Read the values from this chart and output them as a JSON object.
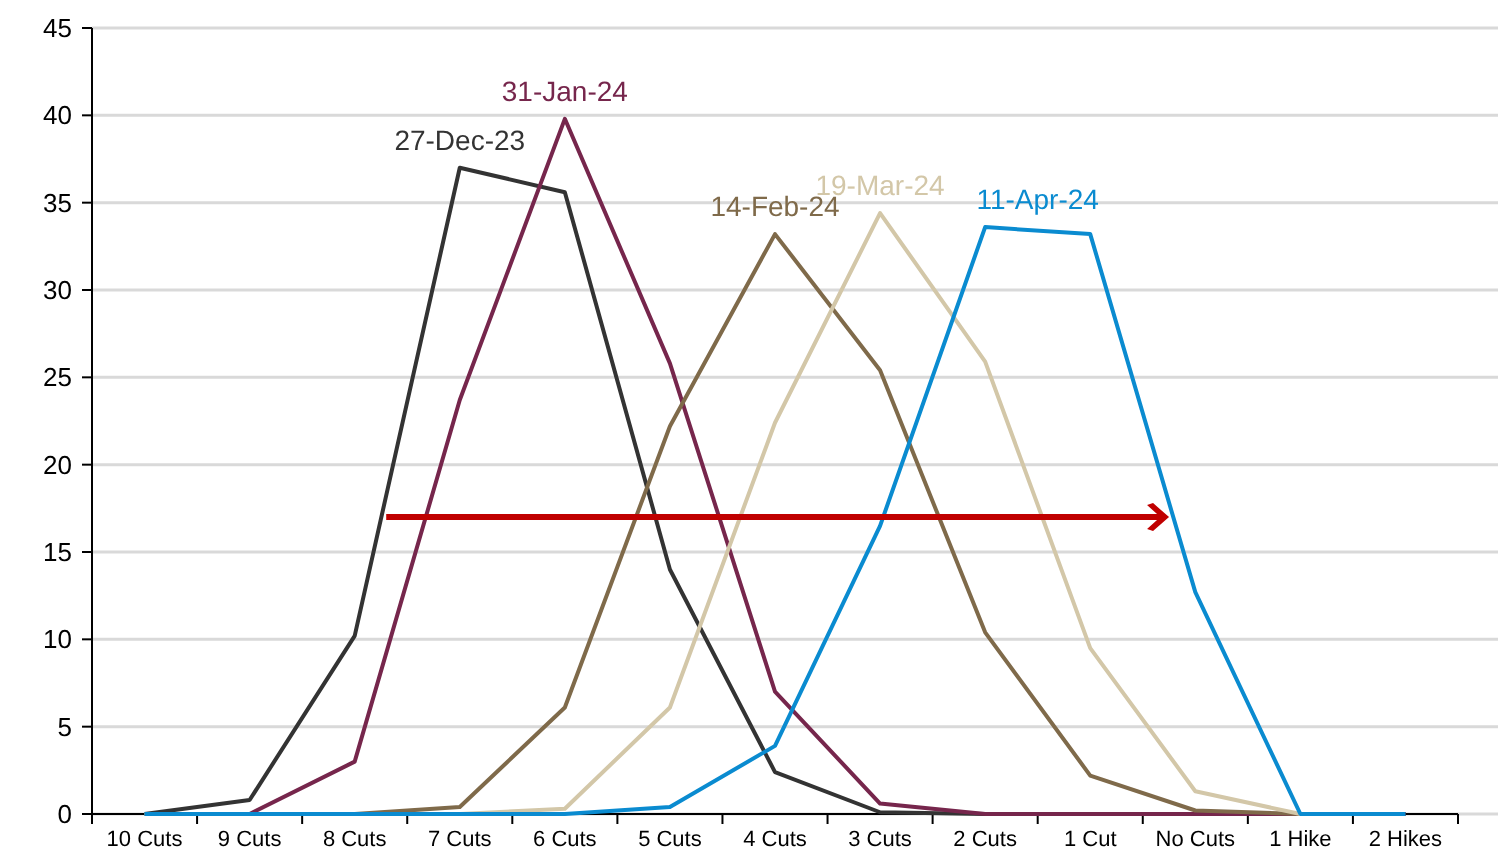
{
  "chart_data": {
    "type": "line",
    "categories": [
      "10 Cuts",
      "9 Cuts",
      "8 Cuts",
      "7 Cuts",
      "6 Cuts",
      "5 Cuts",
      "4 Cuts",
      "3 Cuts",
      "2 Cuts",
      "1 Cut",
      "No Cuts",
      "1 Hike",
      "2 Hikes"
    ],
    "series": [
      {
        "name": "27-Dec-23",
        "color": "#333333",
        "values": [
          0,
          0.8,
          10.2,
          37,
          35.6,
          14,
          2.4,
          0.1,
          0,
          0,
          0,
          0,
          0
        ]
      },
      {
        "name": "31-Jan-24",
        "color": "#76264c",
        "values": [
          null,
          0,
          3,
          23.7,
          39.8,
          25.8,
          7,
          0.6,
          0,
          0,
          0,
          0,
          0
        ]
      },
      {
        "name": "14-Feb-24",
        "color": "#7f6a4a",
        "values": [
          0,
          0,
          0,
          0.4,
          6.1,
          22.2,
          33.2,
          25.4,
          10.4,
          2.2,
          0.2,
          0,
          null
        ]
      },
      {
        "name": "19-Mar-24",
        "color": "#d3c7a8",
        "values": [
          0,
          0,
          0,
          0,
          0.3,
          6.1,
          22.4,
          34.4,
          25.9,
          9.5,
          1.3,
          0,
          null
        ]
      },
      {
        "name": "11-Apr-24",
        "color": "#0a8bd0",
        "values": [
          0,
          0,
          0,
          0,
          0,
          0.4,
          3.9,
          16.5,
          33.6,
          33.2,
          12.7,
          0,
          0
        ]
      }
    ],
    "ylim": [
      0,
      45
    ],
    "yticks": [
      0,
      5,
      10,
      15,
      20,
      25,
      30,
      35,
      40,
      45
    ],
    "grid": "y",
    "marker": "none",
    "line_style": "solid"
  }
}
